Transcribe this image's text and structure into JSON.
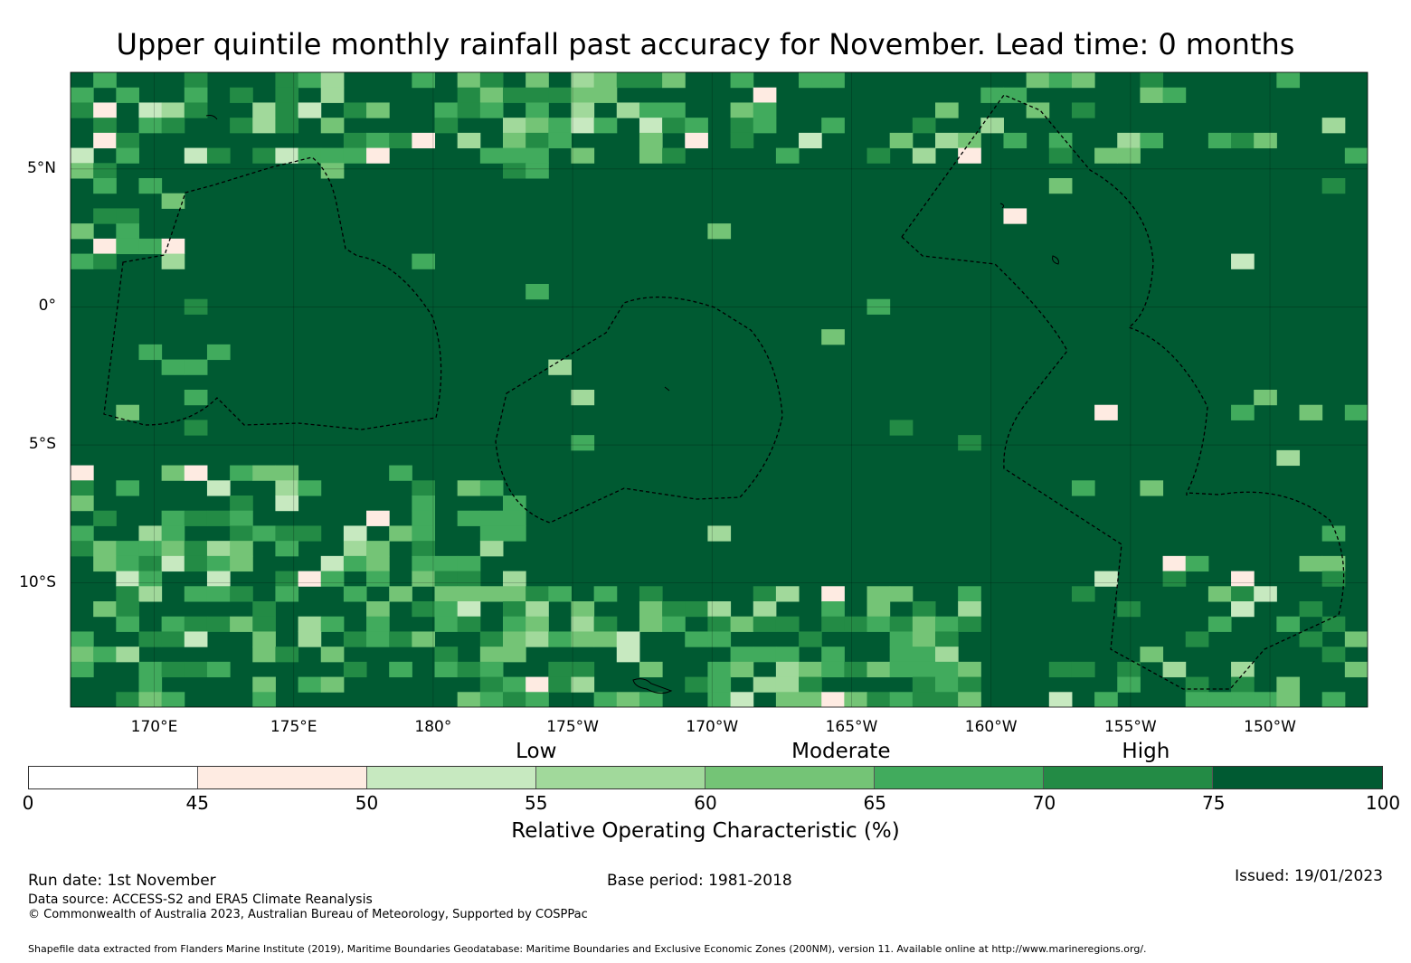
{
  "title": "Upper quintile monthly rainfall past accuracy for November. Lead time: 0 months",
  "map": {
    "lon_range_east": [
      167.0,
      213.5
    ],
    "lat_range": [
      -14.5,
      8.5
    ],
    "background_color": "#005a32",
    "lat_ticks": [
      {
        "label": "5°N",
        "lat": 5
      },
      {
        "label": "0°",
        "lat": 0
      },
      {
        "label": "5°S",
        "lat": -5
      },
      {
        "label": "10°S",
        "lat": -10
      }
    ],
    "lon_ticks": [
      {
        "label": "170°E",
        "lon": 170
      },
      {
        "label": "175°E",
        "lon": 175
      },
      {
        "label": "180°",
        "lon": 180
      },
      {
        "label": "175°W",
        "lon": 185
      },
      {
        "label": "170°W",
        "lon": 190
      },
      {
        "label": "165°W",
        "lon": 195
      },
      {
        "label": "160°W",
        "lon": 200
      },
      {
        "label": "155°W",
        "lon": 205
      },
      {
        "label": "150°W",
        "lon": 210
      }
    ]
  },
  "legend": {
    "bands": [
      {
        "label": "Low",
        "at": 55
      },
      {
        "label": "Moderate",
        "at": 64
      },
      {
        "label": "High",
        "at": 73
      }
    ],
    "segments": [
      {
        "from": 0,
        "to": 45,
        "color": "#ffffff"
      },
      {
        "from": 45,
        "to": 50,
        "color": "#feebe2"
      },
      {
        "from": 50,
        "to": 55,
        "color": "#c7e9c0"
      },
      {
        "from": 55,
        "to": 60,
        "color": "#a1d99b"
      },
      {
        "from": 60,
        "to": 65,
        "color": "#74c476"
      },
      {
        "from": 65,
        "to": 70,
        "color": "#41ab5d"
      },
      {
        "from": 70,
        "to": 75,
        "color": "#238b45"
      },
      {
        "from": 75,
        "to": 100,
        "color": "#005a32"
      }
    ],
    "ticks": [
      "0",
      "45",
      "50",
      "55",
      "60",
      "65",
      "70",
      "75",
      "100"
    ],
    "title": "Relative Operating Characteristic (%)"
  },
  "footer": {
    "run_date": "Run date: 1st November",
    "base_period": "Base period: 1981-2018",
    "issued": "Issued: 19/01/2023",
    "data_source": "Data source: ACCESS-S2 and ERA5 Climate Reanalysis",
    "copyright": "© Commonwealth of Australia 2023, Australian Bureau of Meteorology, Supported by COSPPac",
    "shapefile": "Shapefile data extracted from Flanders Marine Institute (2019), Maritime Boundaries Geodatabase: Maritime Boundaries and Exclusive Economic Zones (200NM), version 11. Available online at http://www.marineregions.org/."
  }
}
